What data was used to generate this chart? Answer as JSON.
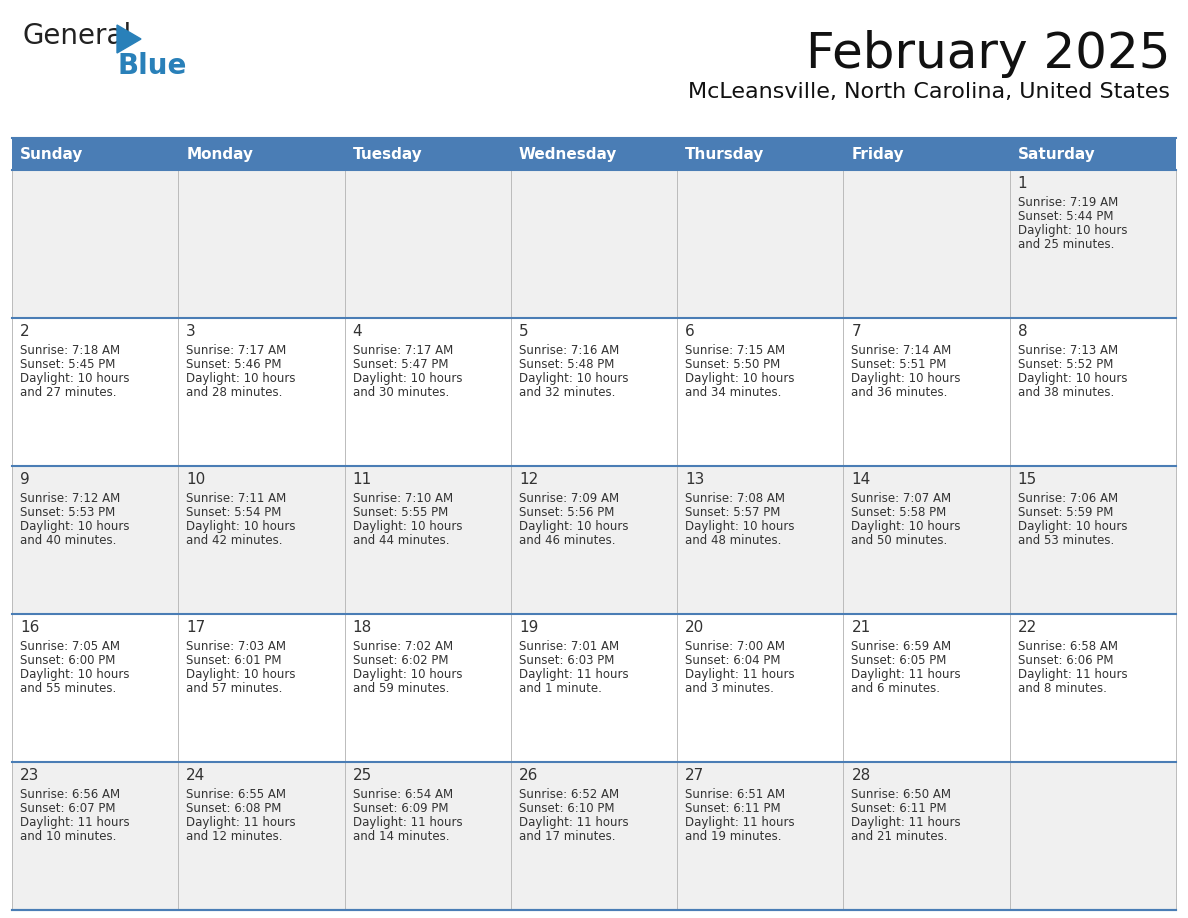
{
  "title": "February 2025",
  "subtitle": "McLeansville, North Carolina, United States",
  "header_bg": "#4a7db5",
  "header_text_color": "#FFFFFF",
  "row_bg_odd": "#f0f0f0",
  "row_bg_even": "#FFFFFF",
  "day_headers": [
    "Sunday",
    "Monday",
    "Tuesday",
    "Wednesday",
    "Thursday",
    "Friday",
    "Saturday"
  ],
  "days": [
    {
      "day": 1,
      "col": 6,
      "row": 0,
      "sunrise": "7:19 AM",
      "sunset": "5:44 PM",
      "daylight_line1": "Daylight: 10 hours",
      "daylight_line2": "and 25 minutes."
    },
    {
      "day": 2,
      "col": 0,
      "row": 1,
      "sunrise": "7:18 AM",
      "sunset": "5:45 PM",
      "daylight_line1": "Daylight: 10 hours",
      "daylight_line2": "and 27 minutes."
    },
    {
      "day": 3,
      "col": 1,
      "row": 1,
      "sunrise": "7:17 AM",
      "sunset": "5:46 PM",
      "daylight_line1": "Daylight: 10 hours",
      "daylight_line2": "and 28 minutes."
    },
    {
      "day": 4,
      "col": 2,
      "row": 1,
      "sunrise": "7:17 AM",
      "sunset": "5:47 PM",
      "daylight_line1": "Daylight: 10 hours",
      "daylight_line2": "and 30 minutes."
    },
    {
      "day": 5,
      "col": 3,
      "row": 1,
      "sunrise": "7:16 AM",
      "sunset": "5:48 PM",
      "daylight_line1": "Daylight: 10 hours",
      "daylight_line2": "and 32 minutes."
    },
    {
      "day": 6,
      "col": 4,
      "row": 1,
      "sunrise": "7:15 AM",
      "sunset": "5:50 PM",
      "daylight_line1": "Daylight: 10 hours",
      "daylight_line2": "and 34 minutes."
    },
    {
      "day": 7,
      "col": 5,
      "row": 1,
      "sunrise": "7:14 AM",
      "sunset": "5:51 PM",
      "daylight_line1": "Daylight: 10 hours",
      "daylight_line2": "and 36 minutes."
    },
    {
      "day": 8,
      "col": 6,
      "row": 1,
      "sunrise": "7:13 AM",
      "sunset": "5:52 PM",
      "daylight_line1": "Daylight: 10 hours",
      "daylight_line2": "and 38 minutes."
    },
    {
      "day": 9,
      "col": 0,
      "row": 2,
      "sunrise": "7:12 AM",
      "sunset": "5:53 PM",
      "daylight_line1": "Daylight: 10 hours",
      "daylight_line2": "and 40 minutes."
    },
    {
      "day": 10,
      "col": 1,
      "row": 2,
      "sunrise": "7:11 AM",
      "sunset": "5:54 PM",
      "daylight_line1": "Daylight: 10 hours",
      "daylight_line2": "and 42 minutes."
    },
    {
      "day": 11,
      "col": 2,
      "row": 2,
      "sunrise": "7:10 AM",
      "sunset": "5:55 PM",
      "daylight_line1": "Daylight: 10 hours",
      "daylight_line2": "and 44 minutes."
    },
    {
      "day": 12,
      "col": 3,
      "row": 2,
      "sunrise": "7:09 AM",
      "sunset": "5:56 PM",
      "daylight_line1": "Daylight: 10 hours",
      "daylight_line2": "and 46 minutes."
    },
    {
      "day": 13,
      "col": 4,
      "row": 2,
      "sunrise": "7:08 AM",
      "sunset": "5:57 PM",
      "daylight_line1": "Daylight: 10 hours",
      "daylight_line2": "and 48 minutes."
    },
    {
      "day": 14,
      "col": 5,
      "row": 2,
      "sunrise": "7:07 AM",
      "sunset": "5:58 PM",
      "daylight_line1": "Daylight: 10 hours",
      "daylight_line2": "and 50 minutes."
    },
    {
      "day": 15,
      "col": 6,
      "row": 2,
      "sunrise": "7:06 AM",
      "sunset": "5:59 PM",
      "daylight_line1": "Daylight: 10 hours",
      "daylight_line2": "and 53 minutes."
    },
    {
      "day": 16,
      "col": 0,
      "row": 3,
      "sunrise": "7:05 AM",
      "sunset": "6:00 PM",
      "daylight_line1": "Daylight: 10 hours",
      "daylight_line2": "and 55 minutes."
    },
    {
      "day": 17,
      "col": 1,
      "row": 3,
      "sunrise": "7:03 AM",
      "sunset": "6:01 PM",
      "daylight_line1": "Daylight: 10 hours",
      "daylight_line2": "and 57 minutes."
    },
    {
      "day": 18,
      "col": 2,
      "row": 3,
      "sunrise": "7:02 AM",
      "sunset": "6:02 PM",
      "daylight_line1": "Daylight: 10 hours",
      "daylight_line2": "and 59 minutes."
    },
    {
      "day": 19,
      "col": 3,
      "row": 3,
      "sunrise": "7:01 AM",
      "sunset": "6:03 PM",
      "daylight_line1": "Daylight: 11 hours",
      "daylight_line2": "and 1 minute."
    },
    {
      "day": 20,
      "col": 4,
      "row": 3,
      "sunrise": "7:00 AM",
      "sunset": "6:04 PM",
      "daylight_line1": "Daylight: 11 hours",
      "daylight_line2": "and 3 minutes."
    },
    {
      "day": 21,
      "col": 5,
      "row": 3,
      "sunrise": "6:59 AM",
      "sunset": "6:05 PM",
      "daylight_line1": "Daylight: 11 hours",
      "daylight_line2": "and 6 minutes."
    },
    {
      "day": 22,
      "col": 6,
      "row": 3,
      "sunrise": "6:58 AM",
      "sunset": "6:06 PM",
      "daylight_line1": "Daylight: 11 hours",
      "daylight_line2": "and 8 minutes."
    },
    {
      "day": 23,
      "col": 0,
      "row": 4,
      "sunrise": "6:56 AM",
      "sunset": "6:07 PM",
      "daylight_line1": "Daylight: 11 hours",
      "daylight_line2": "and 10 minutes."
    },
    {
      "day": 24,
      "col": 1,
      "row": 4,
      "sunrise": "6:55 AM",
      "sunset": "6:08 PM",
      "daylight_line1": "Daylight: 11 hours",
      "daylight_line2": "and 12 minutes."
    },
    {
      "day": 25,
      "col": 2,
      "row": 4,
      "sunrise": "6:54 AM",
      "sunset": "6:09 PM",
      "daylight_line1": "Daylight: 11 hours",
      "daylight_line2": "and 14 minutes."
    },
    {
      "day": 26,
      "col": 3,
      "row": 4,
      "sunrise": "6:52 AM",
      "sunset": "6:10 PM",
      "daylight_line1": "Daylight: 11 hours",
      "daylight_line2": "and 17 minutes."
    },
    {
      "day": 27,
      "col": 4,
      "row": 4,
      "sunrise": "6:51 AM",
      "sunset": "6:11 PM",
      "daylight_line1": "Daylight: 11 hours",
      "daylight_line2": "and 19 minutes."
    },
    {
      "day": 28,
      "col": 5,
      "row": 4,
      "sunrise": "6:50 AM",
      "sunset": "6:11 PM",
      "daylight_line1": "Daylight: 11 hours",
      "daylight_line2": "and 21 minutes."
    }
  ],
  "num_rows": 5,
  "num_cols": 7,
  "logo_color_general": "#222222",
  "logo_color_blue": "#2980B9",
  "logo_tri_color": "#2980B9",
  "border_color": "#4a7db5",
  "grid_color": "#bbbbbb",
  "text_color": "#333333"
}
